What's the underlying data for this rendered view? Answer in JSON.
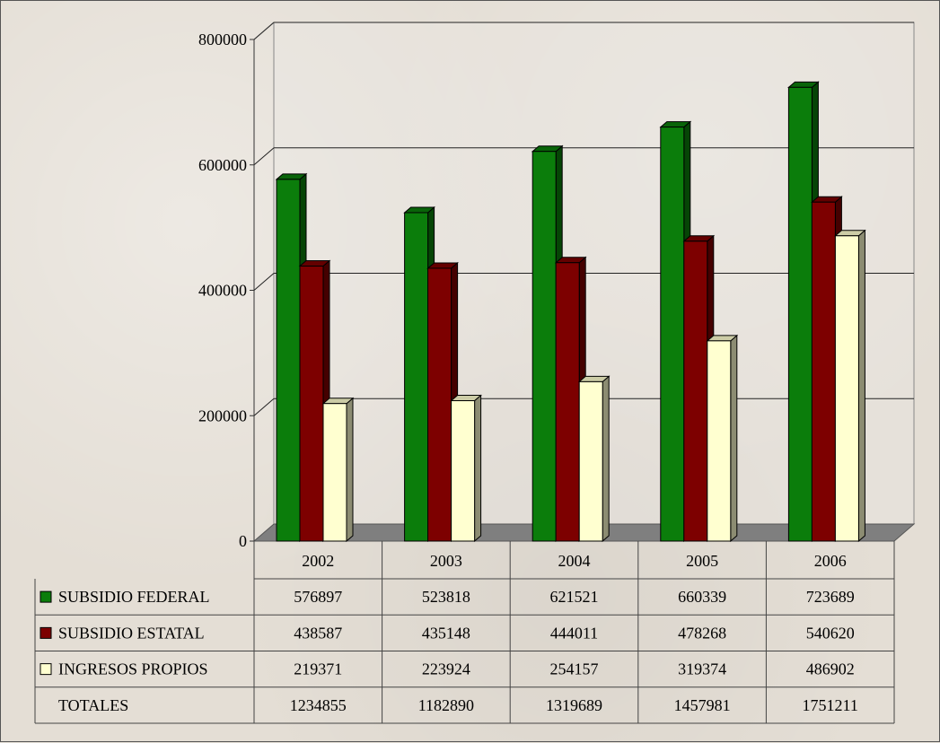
{
  "chart_data": {
    "type": "bar",
    "style": "3d-clustered-column-with-data-table",
    "categories": [
      "2002",
      "2003",
      "2004",
      "2005",
      "2006"
    ],
    "series": [
      {
        "name": "SUBSIDIO FEDERAL",
        "color": "#0b7d0b",
        "values": [
          576897,
          523818,
          621521,
          660339,
          723689
        ]
      },
      {
        "name": "SUBSIDIO ESTATAL",
        "color": "#7d0000",
        "values": [
          438587,
          435148,
          444011,
          478268,
          540620
        ]
      },
      {
        "name": "INGRESOS PROPIOS",
        "color": "#ffffd0",
        "values": [
          219371,
          223924,
          254157,
          319374,
          486902
        ]
      }
    ],
    "totals": {
      "name": "TOTALES",
      "values": [
        1234855,
        1182890,
        1319689,
        1457981,
        1751211
      ]
    },
    "ylim": [
      0,
      800000
    ],
    "yticks": [
      0,
      200000,
      400000,
      600000,
      800000
    ],
    "grid": true,
    "legend": "data-table-left"
  }
}
